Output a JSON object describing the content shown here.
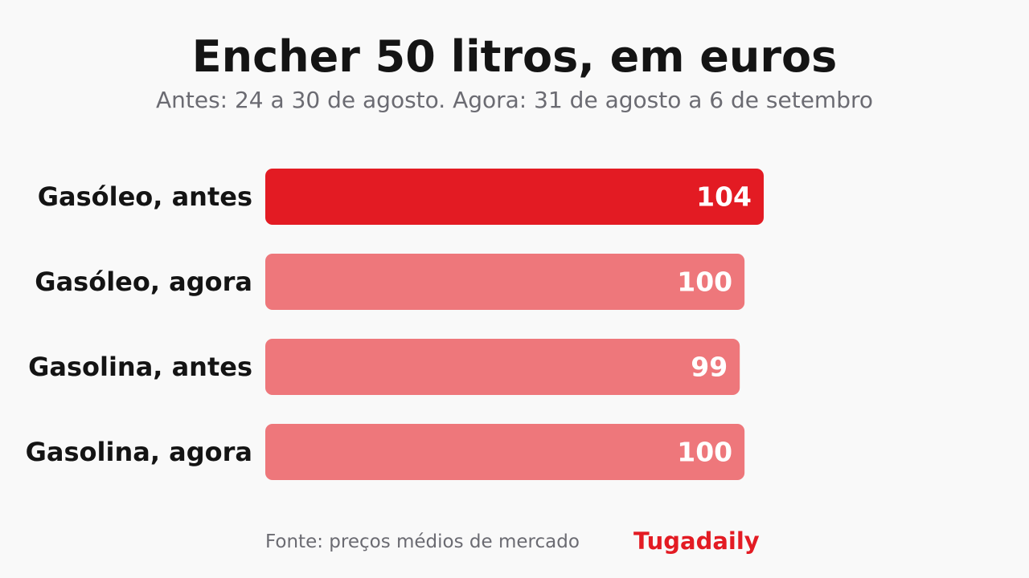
{
  "chart_data": {
    "type": "bar",
    "orientation": "horizontal",
    "title": "Encher 50 litros, em euros",
    "subtitle": "Antes: 24 a 30 de agosto. Agora: 31 de agosto a 6 de setembro",
    "categories": [
      "Gasóleo, antes",
      "Gasóleo, agora",
      "Gasolina, antes",
      "Gasolina, agora"
    ],
    "values": [
      104,
      100,
      99,
      100
    ],
    "xlim": [
      0,
      104
    ],
    "grid": false,
    "highlight_color": "#e31b23",
    "bar_color": "#ee777b",
    "highlight_index": 0
  },
  "footer": {
    "source": "Fonte: preços médios de mercado",
    "brand": "Tugadaily"
  }
}
